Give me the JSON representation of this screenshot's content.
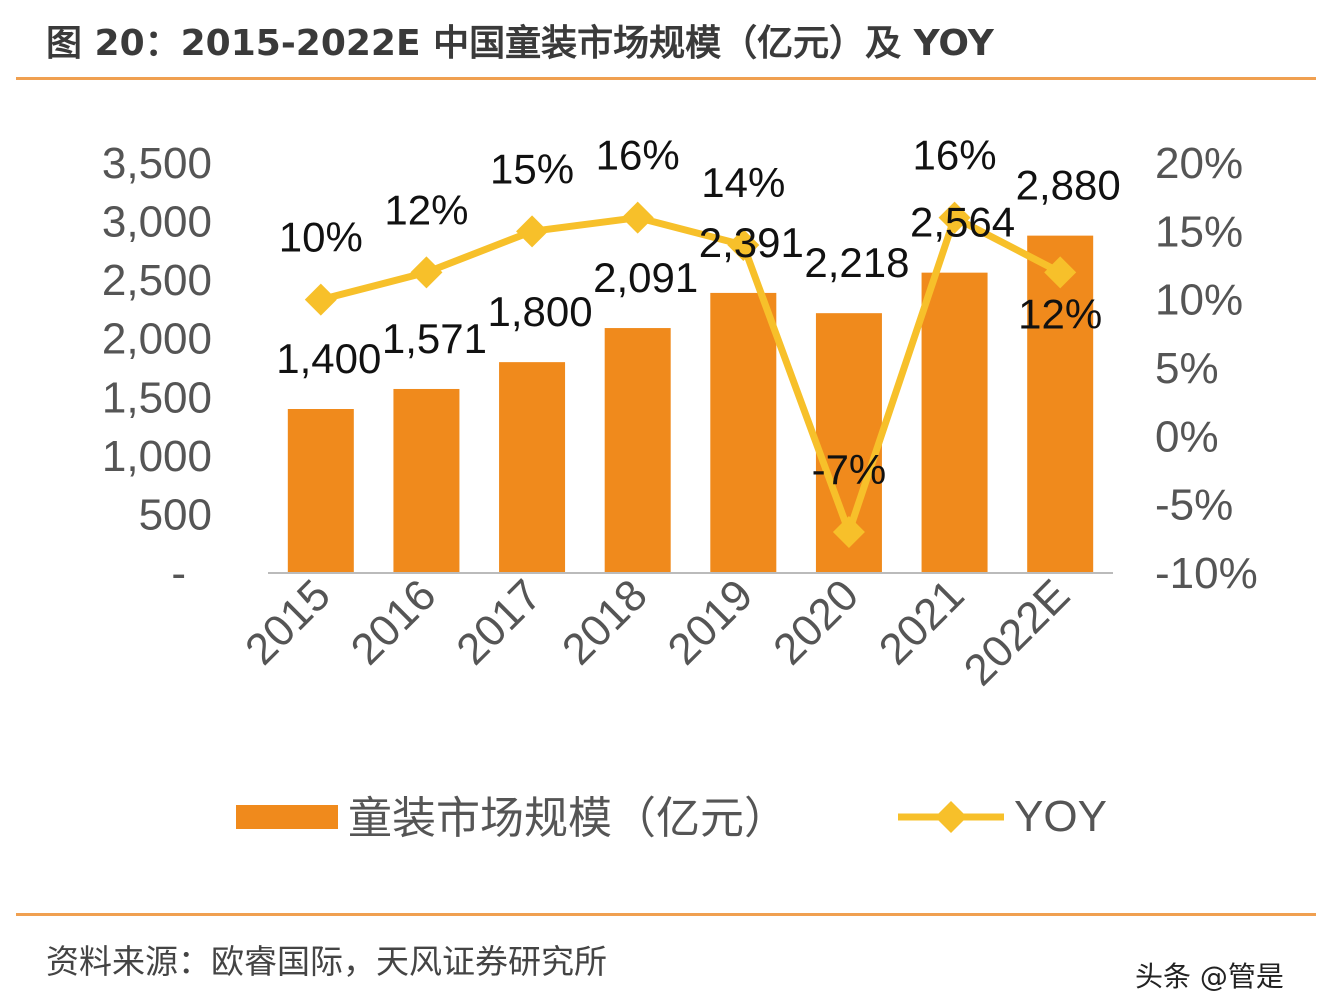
{
  "title": "图 20：2015-2022E 中国童装市场规模（亿元）及 YOY",
  "source": "资料来源：欧睿国际，天风证券研究所",
  "watermark": "头条 @管是",
  "colors": {
    "bar": "#f08a1c",
    "line": "#f7c02a",
    "rule": "#f0a050"
  },
  "chart_data": {
    "type": "bar+line",
    "categories": [
      "2015",
      "2016",
      "2017",
      "2018",
      "2019",
      "2020",
      "2021",
      "2022E"
    ],
    "series": [
      {
        "name": "童装市场规模（亿元）",
        "type": "bar",
        "axis": "left",
        "values": [
          1400,
          1571,
          1800,
          2091,
          2391,
          2218,
          2564,
          2880
        ],
        "labels": [
          "1,400",
          "1,571",
          "1,800",
          "2,091",
          "2,391",
          "2,218",
          "2,564",
          "2,880"
        ]
      },
      {
        "name": "YOY",
        "type": "line",
        "axis": "right",
        "values": [
          10,
          12,
          15,
          16,
          14,
          -7,
          16,
          12
        ],
        "labels": [
          "10%",
          "12%",
          "15%",
          "16%",
          "14%",
          "-7%",
          "16%",
          "12%"
        ]
      }
    ],
    "left_axis": {
      "ylim": [
        0,
        3500
      ],
      "ticks": [
        "-",
        "500",
        "1,000",
        "1,500",
        "2,000",
        "2,500",
        "3,000",
        "3,500"
      ]
    },
    "right_axis": {
      "ylim": [
        -10,
        20
      ],
      "ticks": [
        "-10%",
        "-5%",
        "0%",
        "5%",
        "10%",
        "15%",
        "20%"
      ]
    },
    "grid": false,
    "legend": "bottom"
  }
}
